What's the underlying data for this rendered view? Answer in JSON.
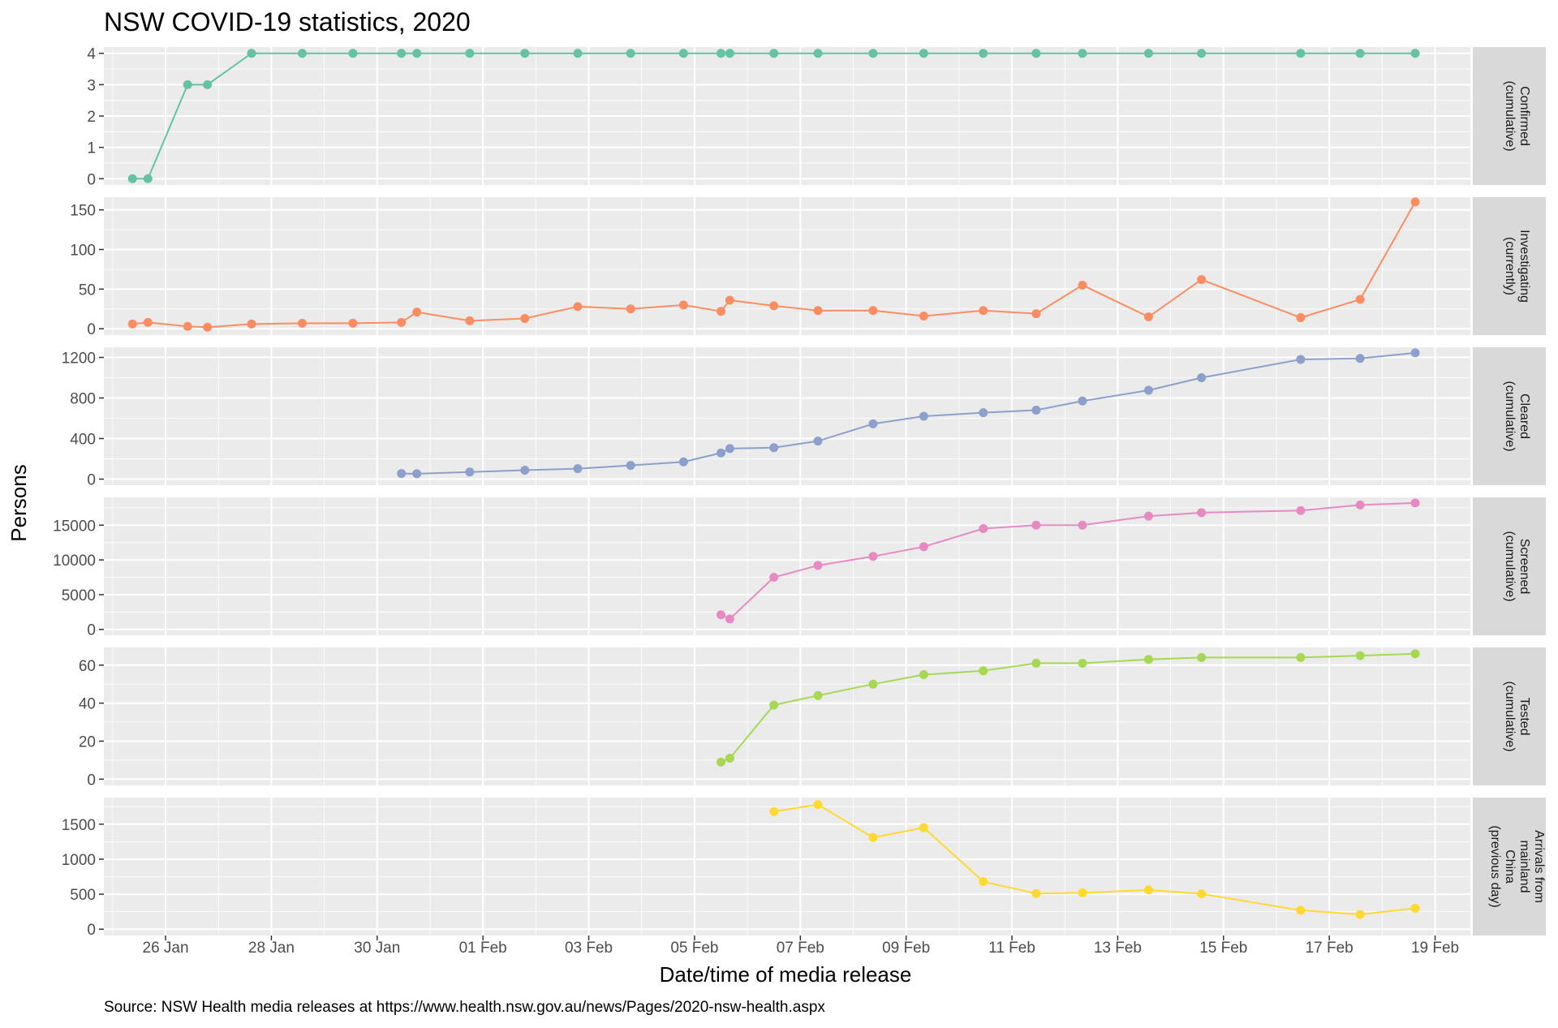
{
  "chart_data": {
    "type": "line",
    "title": "NSW COVID-19 statistics, 2020",
    "xlabel": "Date/time of media release",
    "ylabel": "Persons",
    "caption": "Source: NSW Health media releases at https://www.health.nsw.gov.au/news/Pages/2020-nsw-health.aspx",
    "x_ticks": [
      {
        "value": "2020-01-26",
        "label": "26 Jan"
      },
      {
        "value": "2020-01-28",
        "label": "28 Jan"
      },
      {
        "value": "2020-01-30",
        "label": "30 Jan"
      },
      {
        "value": "2020-02-01",
        "label": "01 Feb"
      },
      {
        "value": "2020-02-03",
        "label": "03 Feb"
      },
      {
        "value": "2020-02-05",
        "label": "05 Feb"
      },
      {
        "value": "2020-02-07",
        "label": "07 Feb"
      },
      {
        "value": "2020-02-09",
        "label": "09 Feb"
      },
      {
        "value": "2020-02-11",
        "label": "11 Feb"
      },
      {
        "value": "2020-02-13",
        "label": "13 Feb"
      },
      {
        "value": "2020-02-15",
        "label": "15 Feb"
      },
      {
        "value": "2020-02-17",
        "label": "17 Feb"
      },
      {
        "value": "2020-02-19",
        "label": "19 Feb"
      }
    ],
    "xlim": [
      "2020-01-24 20:00",
      "2020-02-19 16:00"
    ],
    "panels": [
      {
        "strip": [
          "Confirmed",
          "(cumulative)"
        ],
        "color": "#66c2a5",
        "ylim": [
          -0.2,
          4.2
        ],
        "yticks": [
          {
            "value": 0,
            "label": "0"
          },
          {
            "value": 1,
            "label": "1"
          },
          {
            "value": 2,
            "label": "2"
          },
          {
            "value": 3,
            "label": "3"
          },
          {
            "value": 4,
            "label": "4"
          }
        ],
        "points": [
          {
            "x": "2020-01-25 09:00",
            "y": 0
          },
          {
            "x": "2020-01-25 16:00",
            "y": 0
          },
          {
            "x": "2020-01-26 10:00",
            "y": 3
          },
          {
            "x": "2020-01-26 19:00",
            "y": 3
          },
          {
            "x": "2020-01-27 15:00",
            "y": 4
          },
          {
            "x": "2020-01-28 14:00",
            "y": 4
          },
          {
            "x": "2020-01-29 13:00",
            "y": 4
          },
          {
            "x": "2020-01-30 11:00",
            "y": 4
          },
          {
            "x": "2020-01-30 18:00",
            "y": 4
          },
          {
            "x": "2020-01-31 18:00",
            "y": 4
          },
          {
            "x": "2020-02-01 19:00",
            "y": 4
          },
          {
            "x": "2020-02-02 19:00",
            "y": 4
          },
          {
            "x": "2020-02-03 19:00",
            "y": 4
          },
          {
            "x": "2020-02-04 19:00",
            "y": 4
          },
          {
            "x": "2020-02-05 12:00",
            "y": 4
          },
          {
            "x": "2020-02-05 16:00",
            "y": 4
          },
          {
            "x": "2020-02-06 12:00",
            "y": 4
          },
          {
            "x": "2020-02-07 08:00",
            "y": 4
          },
          {
            "x": "2020-02-08 09:00",
            "y": 4
          },
          {
            "x": "2020-02-09 08:00",
            "y": 4
          },
          {
            "x": "2020-02-10 11:00",
            "y": 4
          },
          {
            "x": "2020-02-11 11:00",
            "y": 4
          },
          {
            "x": "2020-02-12 08:00",
            "y": 4
          },
          {
            "x": "2020-02-13 14:00",
            "y": 4
          },
          {
            "x": "2020-02-14 14:00",
            "y": 4
          },
          {
            "x": "2020-02-16 11:00",
            "y": 4
          },
          {
            "x": "2020-02-17 14:00",
            "y": 4
          },
          {
            "x": "2020-02-18 15:00",
            "y": 4
          }
        ]
      },
      {
        "strip": [
          "Investigating",
          "(currently)"
        ],
        "color": "#fc8d62",
        "ylim": [
          -8,
          166
        ],
        "yticks": [
          {
            "value": 0,
            "label": "0"
          },
          {
            "value": 50,
            "label": "50"
          },
          {
            "value": 100,
            "label": "100"
          },
          {
            "value": 150,
            "label": "150"
          }
        ],
        "points": [
          {
            "x": "2020-01-25 09:00",
            "y": 6
          },
          {
            "x": "2020-01-25 16:00",
            "y": 8
          },
          {
            "x": "2020-01-26 10:00",
            "y": 3
          },
          {
            "x": "2020-01-26 19:00",
            "y": 2
          },
          {
            "x": "2020-01-27 15:00",
            "y": 6
          },
          {
            "x": "2020-01-28 14:00",
            "y": 7
          },
          {
            "x": "2020-01-29 13:00",
            "y": 7
          },
          {
            "x": "2020-01-30 11:00",
            "y": 8
          },
          {
            "x": "2020-01-30 18:00",
            "y": 21
          },
          {
            "x": "2020-01-31 18:00",
            "y": 10
          },
          {
            "x": "2020-02-01 19:00",
            "y": 13
          },
          {
            "x": "2020-02-02 19:00",
            "y": 28
          },
          {
            "x": "2020-02-03 19:00",
            "y": 25
          },
          {
            "x": "2020-02-04 19:00",
            "y": 30
          },
          {
            "x": "2020-02-05 12:00",
            "y": 22
          },
          {
            "x": "2020-02-05 16:00",
            "y": 36
          },
          {
            "x": "2020-02-06 12:00",
            "y": 29
          },
          {
            "x": "2020-02-07 08:00",
            "y": 23
          },
          {
            "x": "2020-02-08 09:00",
            "y": 23
          },
          {
            "x": "2020-02-09 08:00",
            "y": 16
          },
          {
            "x": "2020-02-10 11:00",
            "y": 23
          },
          {
            "x": "2020-02-11 11:00",
            "y": 19
          },
          {
            "x": "2020-02-12 08:00",
            "y": 55
          },
          {
            "x": "2020-02-13 14:00",
            "y": 15
          },
          {
            "x": "2020-02-14 14:00",
            "y": 62
          },
          {
            "x": "2020-02-16 11:00",
            "y": 14
          },
          {
            "x": "2020-02-17 14:00",
            "y": 37
          },
          {
            "x": "2020-02-18 15:00",
            "y": 160
          }
        ]
      },
      {
        "strip": [
          "Cleared",
          "(cumulative)"
        ],
        "color": "#8da0cb",
        "ylim": [
          -60,
          1300
        ],
        "yticks": [
          {
            "value": 0,
            "label": "0"
          },
          {
            "value": 400,
            "label": "400"
          },
          {
            "value": 800,
            "label": "800"
          },
          {
            "value": 1200,
            "label": "1200"
          }
        ],
        "points": [
          {
            "x": "2020-01-30 11:00",
            "y": 55
          },
          {
            "x": "2020-01-30 18:00",
            "y": 53
          },
          {
            "x": "2020-01-31 18:00",
            "y": 70
          },
          {
            "x": "2020-02-01 19:00",
            "y": 88
          },
          {
            "x": "2020-02-02 19:00",
            "y": 103
          },
          {
            "x": "2020-02-03 19:00",
            "y": 135
          },
          {
            "x": "2020-02-04 19:00",
            "y": 170
          },
          {
            "x": "2020-02-05 12:00",
            "y": 258
          },
          {
            "x": "2020-02-05 16:00",
            "y": 301
          },
          {
            "x": "2020-02-06 12:00",
            "y": 310
          },
          {
            "x": "2020-02-07 08:00",
            "y": 375
          },
          {
            "x": "2020-02-08 09:00",
            "y": 545
          },
          {
            "x": "2020-02-09 08:00",
            "y": 620
          },
          {
            "x": "2020-02-10 11:00",
            "y": 655
          },
          {
            "x": "2020-02-11 11:00",
            "y": 680
          },
          {
            "x": "2020-02-12 08:00",
            "y": 770
          },
          {
            "x": "2020-02-13 14:00",
            "y": 876
          },
          {
            "x": "2020-02-14 14:00",
            "y": 1000
          },
          {
            "x": "2020-02-16 11:00",
            "y": 1180
          },
          {
            "x": "2020-02-17 14:00",
            "y": 1190
          },
          {
            "x": "2020-02-18 15:00",
            "y": 1245
          }
        ]
      },
      {
        "strip": [
          "Screened",
          "(cumulative)"
        ],
        "color": "#e78ac3",
        "ylim": [
          -850,
          19000
        ],
        "yticks": [
          {
            "value": 0,
            "label": "0"
          },
          {
            "value": 5000,
            "label": "5000"
          },
          {
            "value": 10000,
            "label": "10000"
          },
          {
            "value": 15000,
            "label": "15000"
          }
        ],
        "points": [
          {
            "x": "2020-02-05 12:00",
            "y": 2100
          },
          {
            "x": "2020-02-05 16:00",
            "y": 1500
          },
          {
            "x": "2020-02-06 12:00",
            "y": 7500
          },
          {
            "x": "2020-02-07 08:00",
            "y": 9200
          },
          {
            "x": "2020-02-08 09:00",
            "y": 10500
          },
          {
            "x": "2020-02-09 08:00",
            "y": 11900
          },
          {
            "x": "2020-02-10 11:00",
            "y": 14500
          },
          {
            "x": "2020-02-11 11:00",
            "y": 15000
          },
          {
            "x": "2020-02-12 08:00",
            "y": 15000
          },
          {
            "x": "2020-02-13 14:00",
            "y": 16300
          },
          {
            "x": "2020-02-14 14:00",
            "y": 16800
          },
          {
            "x": "2020-02-16 11:00",
            "y": 17100
          },
          {
            "x": "2020-02-17 14:00",
            "y": 17900
          },
          {
            "x": "2020-02-18 15:00",
            "y": 18200
          }
        ]
      },
      {
        "strip": [
          "Tested",
          "(cumulative)"
        ],
        "color": "#a6d854",
        "ylim": [
          -3.3,
          69.3
        ],
        "yticks": [
          {
            "value": 0,
            "label": "0"
          },
          {
            "value": 20,
            "label": "20"
          },
          {
            "value": 40,
            "label": "40"
          },
          {
            "value": 60,
            "label": "60"
          }
        ],
        "points": [
          {
            "x": "2020-02-05 12:00",
            "y": 9
          },
          {
            "x": "2020-02-05 16:00",
            "y": 11
          },
          {
            "x": "2020-02-06 12:00",
            "y": 39
          },
          {
            "x": "2020-02-07 08:00",
            "y": 44
          },
          {
            "x": "2020-02-08 09:00",
            "y": 50
          },
          {
            "x": "2020-02-09 08:00",
            "y": 55
          },
          {
            "x": "2020-02-10 11:00",
            "y": 57
          },
          {
            "x": "2020-02-11 11:00",
            "y": 61
          },
          {
            "x": "2020-02-12 08:00",
            "y": 61
          },
          {
            "x": "2020-02-13 14:00",
            "y": 63
          },
          {
            "x": "2020-02-14 14:00",
            "y": 64
          },
          {
            "x": "2020-02-16 11:00",
            "y": 64
          },
          {
            "x": "2020-02-17 14:00",
            "y": 65
          },
          {
            "x": "2020-02-18 15:00",
            "y": 66
          }
        ]
      },
      {
        "strip": [
          "Arrivals from",
          "mainland",
          "China",
          "(previous day)"
        ],
        "color": "#ffd92f",
        "ylim": [
          -90,
          1880
        ],
        "yticks": [
          {
            "value": 0,
            "label": "0"
          },
          {
            "value": 500,
            "label": "500"
          },
          {
            "value": 1000,
            "label": "1000"
          },
          {
            "value": 1500,
            "label": "1500"
          }
        ],
        "points": [
          {
            "x": "2020-02-06 12:00",
            "y": 1680
          },
          {
            "x": "2020-02-07 08:00",
            "y": 1780
          },
          {
            "x": "2020-02-08 09:00",
            "y": 1310
          },
          {
            "x": "2020-02-09 08:00",
            "y": 1450
          },
          {
            "x": "2020-02-10 11:00",
            "y": 680
          },
          {
            "x": "2020-02-11 11:00",
            "y": 510
          },
          {
            "x": "2020-02-12 08:00",
            "y": 520
          },
          {
            "x": "2020-02-13 14:00",
            "y": 560
          },
          {
            "x": "2020-02-14 14:00",
            "y": 505
          },
          {
            "x": "2020-02-16 11:00",
            "y": 270
          },
          {
            "x": "2020-02-17 14:00",
            "y": 210
          },
          {
            "x": "2020-02-18 15:00",
            "y": 300
          }
        ]
      }
    ]
  }
}
